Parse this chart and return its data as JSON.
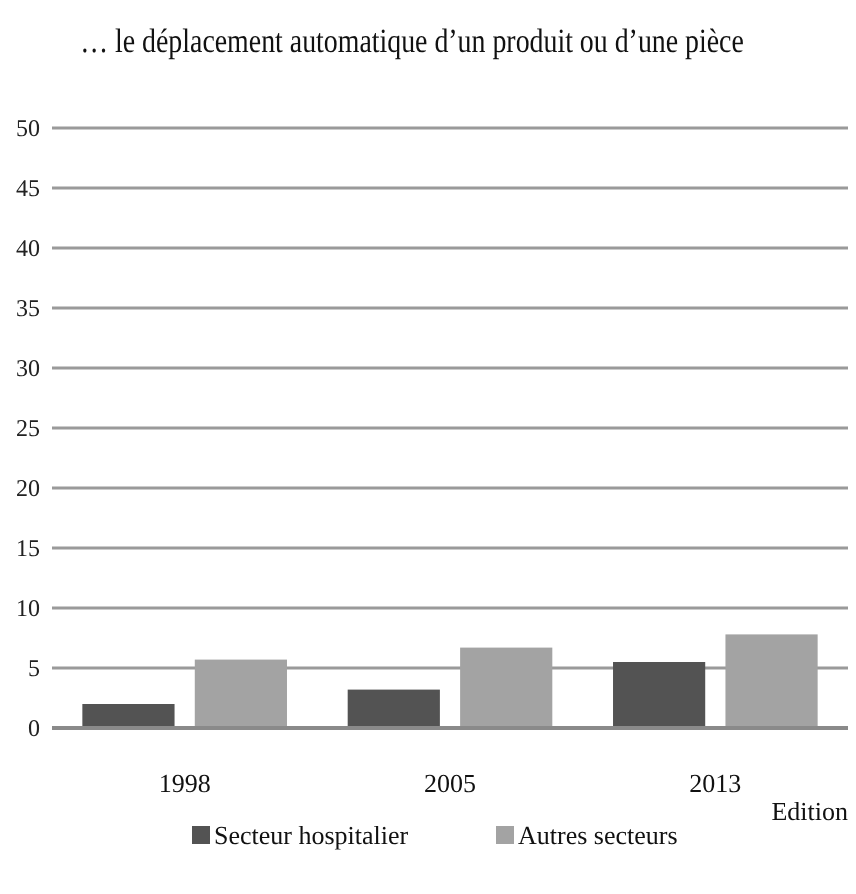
{
  "chart_data": {
    "type": "bar",
    "title": "… le déplacement automatique d’un produit ou d’une pièce",
    "xlabel": "Edition",
    "categories": [
      "1998",
      "2005",
      "2013"
    ],
    "series": [
      {
        "name": "Secteur hospitalier",
        "color": "#535353",
        "values": [
          2.0,
          3.2,
          5.5
        ]
      },
      {
        "name": "Autres secteurs",
        "color": "#a3a3a3",
        "values": [
          5.7,
          6.7,
          7.8
        ]
      }
    ],
    "ylim": [
      0,
      50
    ],
    "yticks": [
      0,
      5,
      10,
      15,
      20,
      25,
      30,
      35,
      40,
      45,
      50
    ],
    "grid": "y",
    "legend": "bottom"
  }
}
